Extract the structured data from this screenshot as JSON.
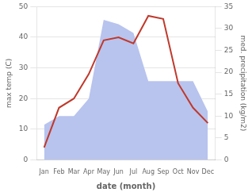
{
  "chart_data": {
    "type": "line",
    "xlabel": "date (month)",
    "ylabel": "max temp (C)",
    "y2label": "med. precipitation (kg/m2)",
    "categories": [
      "Jan",
      "Feb",
      "Mar",
      "Apr",
      "May",
      "Jun",
      "Jul",
      "Aug",
      "Sep",
      "Oct",
      "Nov",
      "Dec"
    ],
    "series": [
      {
        "type": "area",
        "axis": "y2",
        "color": "#b8c4ee",
        "values": [
          8,
          10,
          10,
          14,
          32,
          31,
          29,
          18,
          18,
          18,
          18,
          11
        ]
      },
      {
        "type": "line",
        "color": "#c0392b",
        "values": [
          4,
          17,
          20,
          28,
          39,
          40,
          38,
          47,
          46,
          25,
          17,
          12
        ]
      }
    ],
    "ylim": [
      0,
      50
    ],
    "yticks": [
      0,
      10,
      20,
      30,
      40,
      50
    ],
    "y2lim": [
      0,
      35
    ],
    "y2ticks": [
      0,
      5,
      10,
      15,
      20,
      25,
      30,
      35
    ],
    "grid": true
  }
}
